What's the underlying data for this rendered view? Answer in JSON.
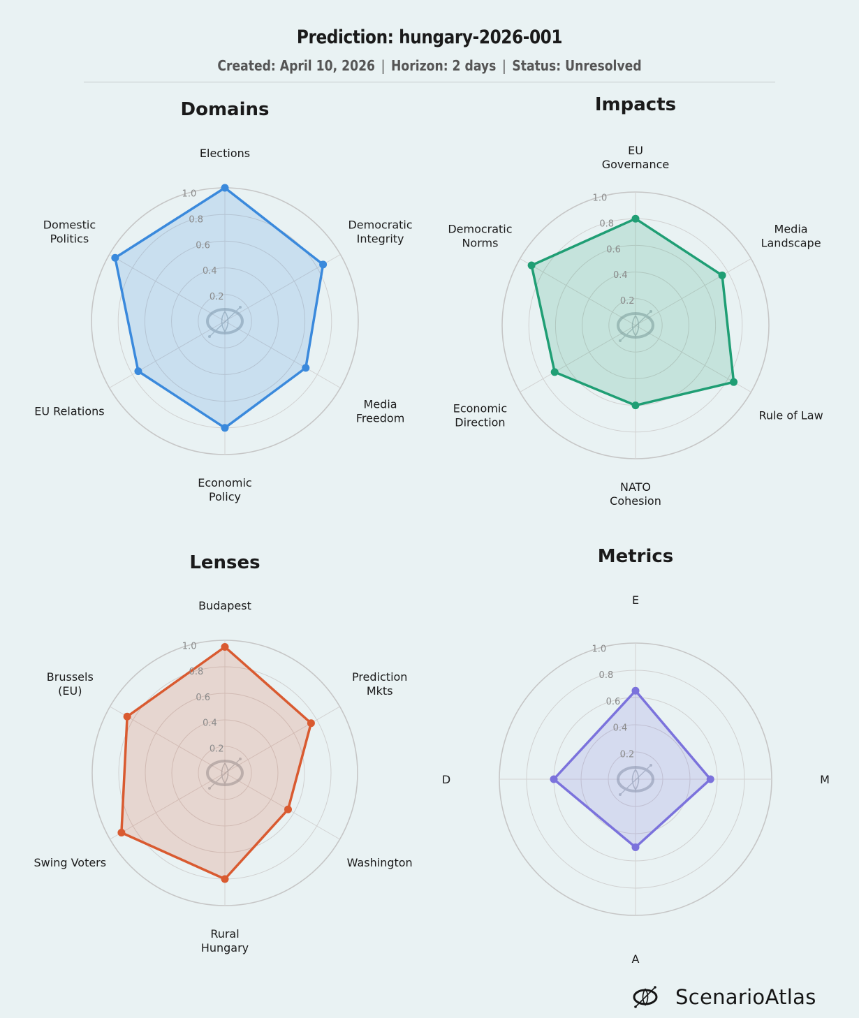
{
  "header": {
    "title": "Prediction: hungary-2026-001",
    "created": "Created: April 10, 2026",
    "horizon": "Horizon: 2 days",
    "status": "Status: Unresolved",
    "separator": "|"
  },
  "brand": {
    "name": "ScenarioAtlas",
    "icon": "scenarioatlas-logo-icon"
  },
  "chart_data": [
    {
      "type": "radar",
      "title": "Domains",
      "color": "#3a89dc",
      "fill": "#cde2f1",
      "categories": [
        "Elections",
        "Democratic\nIntegrity",
        "Media\nFreedom",
        "Economic\nPolicy",
        "EU Relations",
        "Domestic\nPolitics"
      ],
      "values": [
        1.0,
        0.85,
        0.7,
        0.8,
        0.75,
        0.95
      ],
      "rlim": [
        0,
        1.0
      ],
      "rticks": [
        "0.2",
        "0.4",
        "0.6",
        "0.8",
        "1.0"
      ],
      "grid": true
    },
    {
      "type": "radar",
      "title": "Impacts",
      "color": "#1f9e74",
      "fill": "#cce6e1",
      "categories": [
        "EU\nGovernance",
        "Media\nLandscape",
        "Rule of Law",
        "NATO\nCohesion",
        "Economic\nDirection",
        "Democratic\nNorms"
      ],
      "values": [
        0.8,
        0.75,
        0.85,
        0.6,
        0.7,
        0.9
      ],
      "rlim": [
        0,
        1.0
      ],
      "rticks": [
        "0.2",
        "0.4",
        "0.6",
        "0.8",
        "1.0"
      ],
      "grid": true
    },
    {
      "type": "radar",
      "title": "Lenses",
      "color": "#d95a30",
      "fill": "#e6ddd9",
      "categories": [
        "Budapest",
        "Prediction\nMkts",
        "Washington",
        "Rural\nHungary",
        "Swing Voters",
        "Brussels\n(EU)"
      ],
      "values": [
        0.95,
        0.75,
        0.55,
        0.8,
        0.9,
        0.85
      ],
      "rlim": [
        0,
        1.0
      ],
      "rticks": [
        "0.2",
        "0.4",
        "0.6",
        "0.8",
        "1.0"
      ],
      "grid": true
    },
    {
      "type": "radar",
      "title": "Metrics",
      "color": "#7b72dc",
      "fill": "#d9def0",
      "categories": [
        "E",
        "M",
        "A",
        "D"
      ],
      "values": [
        0.65,
        0.55,
        0.5,
        0.6
      ],
      "rlim": [
        0,
        1.0
      ],
      "rticks": [
        "0.2",
        "0.4",
        "0.6",
        "0.8",
        "1.0"
      ],
      "grid": true
    }
  ]
}
